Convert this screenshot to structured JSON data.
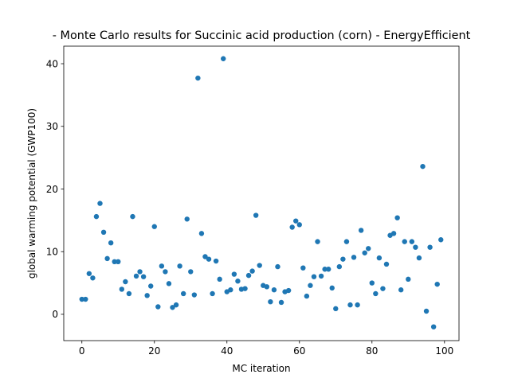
{
  "chart_data": {
    "type": "scatter",
    "title": "- Monte Carlo results for Succinic acid production (corn) - EnergyEfficient",
    "xlabel": "MC iteration",
    "ylabel": "global warming potential (GWP100)",
    "xlim": [
      -5,
      104
    ],
    "ylim": [
      -4.2,
      42.8
    ],
    "xticks": [
      0,
      20,
      40,
      60,
      80,
      100
    ],
    "yticks": [
      0,
      10,
      20,
      30,
      40
    ],
    "marker_color": "#1f77b4",
    "grid": false,
    "legend": "none",
    "x": [
      0,
      1,
      2,
      3,
      4,
      5,
      6,
      7,
      8,
      9,
      10,
      11,
      12,
      13,
      14,
      15,
      16,
      17,
      18,
      19,
      20,
      21,
      22,
      23,
      24,
      25,
      26,
      27,
      28,
      29,
      30,
      31,
      32,
      33,
      34,
      35,
      36,
      37,
      38,
      39,
      40,
      41,
      42,
      43,
      44,
      45,
      46,
      47,
      48,
      49,
      50,
      51,
      52,
      53,
      54,
      55,
      56,
      57,
      58,
      59,
      60,
      61,
      62,
      63,
      64,
      65,
      66,
      67,
      68,
      69,
      70,
      71,
      72,
      73,
      74,
      75,
      76,
      77,
      78,
      79,
      80,
      81,
      82,
      83,
      84,
      85,
      86,
      87,
      88,
      89,
      90,
      91,
      92,
      93,
      94,
      95,
      96,
      97,
      98,
      99
    ],
    "y": [
      2.4,
      2.4,
      6.5,
      5.8,
      15.6,
      17.7,
      13.1,
      8.9,
      11.4,
      8.4,
      8.4,
      4.0,
      5.2,
      3.3,
      15.6,
      6.1,
      6.8,
      6.0,
      3.0,
      4.5,
      14.0,
      1.2,
      7.7,
      6.8,
      4.9,
      1.1,
      1.5,
      7.7,
      3.3,
      15.2,
      6.8,
      3.1,
      37.7,
      12.9,
      9.2,
      8.8,
      3.3,
      8.5,
      5.6,
      40.8,
      3.6,
      3.9,
      6.4,
      5.3,
      4.0,
      4.1,
      6.2,
      6.9,
      15.8,
      7.8,
      4.6,
      4.4,
      2.0,
      3.9,
      7.6,
      1.9,
      3.6,
      3.8,
      13.9,
      14.9,
      14.3,
      7.4,
      2.9,
      4.6,
      6.0,
      11.6,
      6.1,
      7.2,
      7.2,
      4.2,
      0.9,
      7.6,
      8.8,
      11.6,
      1.5,
      9.1,
      1.5,
      13.4,
      9.8,
      10.5,
      5.0,
      3.3,
      9.0,
      4.1,
      8.0,
      12.6,
      12.9,
      15.4,
      3.9,
      11.6,
      5.6,
      11.6,
      10.7,
      9.0,
      23.6,
      0.5,
      10.7,
      -2.0,
      4.8,
      11.9
    ]
  }
}
